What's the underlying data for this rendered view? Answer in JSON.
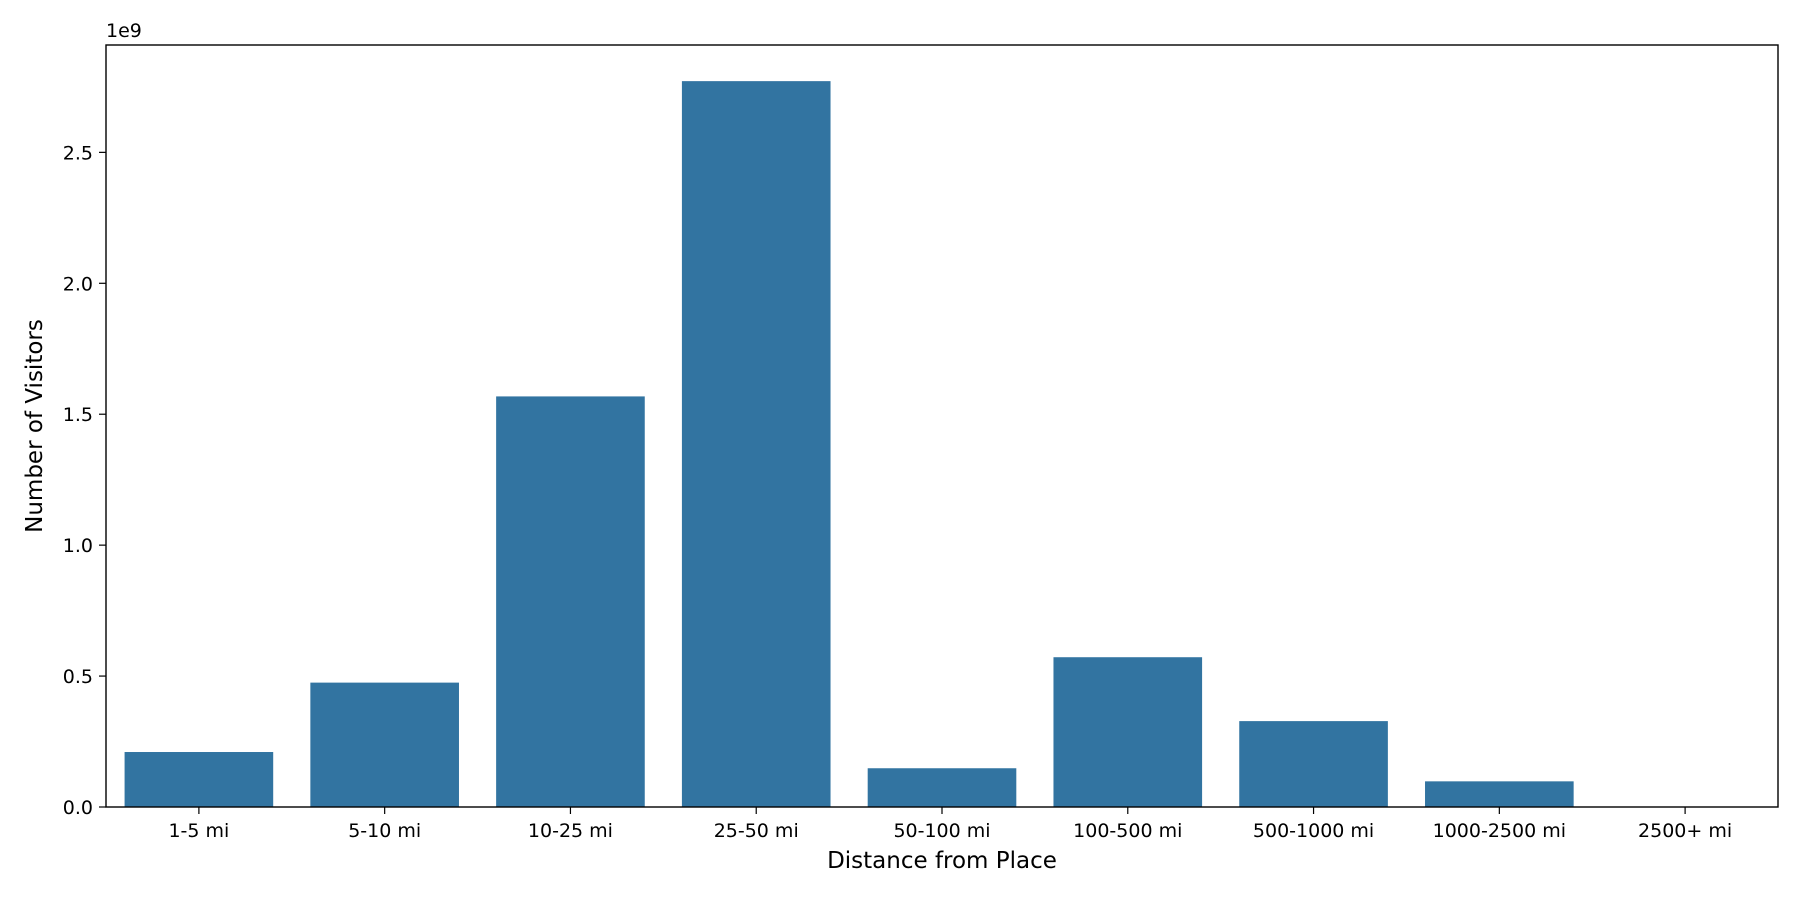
{
  "chart_data": {
    "type": "bar",
    "title": "",
    "xlabel": "Distance from Place",
    "ylabel": "Number of Visitors",
    "y_offset_label": "1e9",
    "y_scale": 1000000000,
    "categories": [
      "1-5 mi",
      "5-10 mi",
      "10-25 mi",
      "25-50 mi",
      "50-100 mi",
      "100-500 mi",
      "500-1000 mi",
      "1000-2500 mi",
      "2500+ mi"
    ],
    "values": [
      210000000,
      475000000,
      1568000000,
      2772000000,
      148000000,
      572000000,
      328000000,
      98000000,
      0
    ],
    "ylim": [
      0,
      2910000000
    ],
    "yticks": [
      0,
      500000000,
      1000000000,
      1500000000,
      2000000000,
      2500000000
    ],
    "ytick_labels": [
      "0.0",
      "0.5",
      "1.0",
      "1.5",
      "2.0",
      "2.5"
    ],
    "grid": false,
    "legend": "none",
    "bar_color": "#3274a1"
  }
}
